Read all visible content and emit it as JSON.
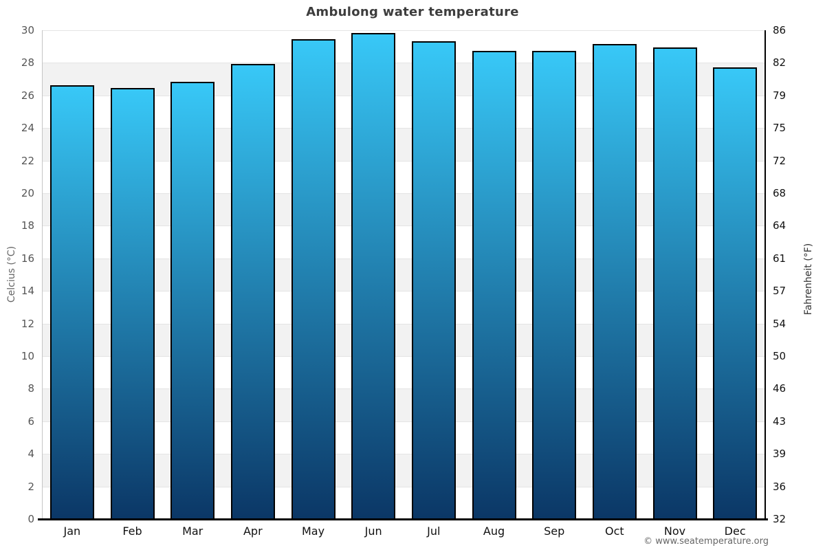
{
  "chart_data": {
    "type": "bar",
    "title": "Ambulong water temperature",
    "categories": [
      "Jan",
      "Feb",
      "Mar",
      "Apr",
      "May",
      "Jun",
      "Jul",
      "Aug",
      "Sep",
      "Oct",
      "Nov",
      "Dec"
    ],
    "values": [
      26.6,
      26.4,
      26.8,
      27.9,
      29.4,
      29.8,
      29.3,
      28.7,
      28.7,
      29.1,
      28.9,
      27.7
    ],
    "unit": "°C",
    "ylabel_left": "Celcius (°C)",
    "ylabel_right": "Fahrenheit (°F)",
    "ylim_celsius": [
      0,
      30
    ],
    "yticks_celsius": [
      0,
      2,
      4,
      6,
      8,
      10,
      12,
      14,
      16,
      18,
      20,
      22,
      24,
      26,
      28,
      30
    ],
    "yticks_fahrenheit": [
      32,
      36,
      39,
      43,
      46,
      50,
      54,
      57,
      61,
      64,
      68,
      72,
      75,
      79,
      82,
      86
    ],
    "xlabel": "",
    "legend": null,
    "grid": "horizontal gridlines every 2°C with alternating shaded bands",
    "footer": "© www.seatemperature.org",
    "colors": {
      "bar_gradient_top": "#38c8f7",
      "bar_gradient_bottom": "#0b3766",
      "bar_border": "#000000",
      "band_shade": "#f2f2f2",
      "gridline": "#e4e4e4",
      "axis_left": "#c5c5c5",
      "axis_right": "#000000",
      "axis_bottom": "#000000",
      "title_text": "#3d3d3d",
      "tick_text_left": "#555555",
      "tick_text_right": "#111111",
      "month_text": "#111111",
      "footer_text": "#666666"
    }
  }
}
